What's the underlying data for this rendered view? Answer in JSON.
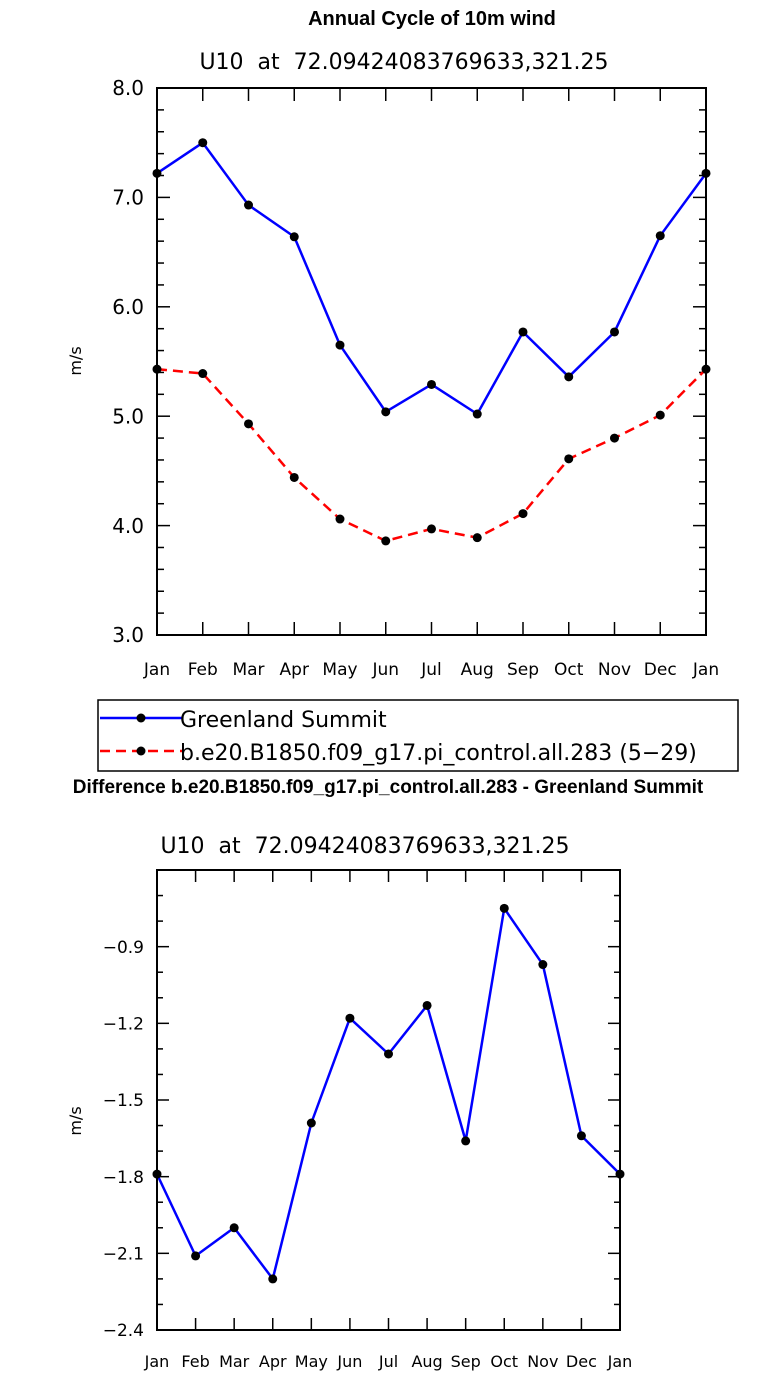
{
  "chart_data": [
    {
      "type": "line",
      "title": "Annual Cycle of 10m wind",
      "subtitle": "U10  at  72.09424083769633,321.25",
      "xlabel": "",
      "ylabel": "m/s",
      "categories": [
        "Jan",
        "Feb",
        "Mar",
        "Apr",
        "May",
        "Jun",
        "Jul",
        "Aug",
        "Sep",
        "Oct",
        "Nov",
        "Dec",
        "Jan"
      ],
      "ylim": [
        3.0,
        8.0
      ],
      "yticks": [
        "3.0",
        "4.0",
        "5.0",
        "6.0",
        "7.0",
        "8.0"
      ],
      "legend_position": "below",
      "series": [
        {
          "name": "Greenland Summit",
          "color": "#0000ff",
          "dash": "solid",
          "values": [
            7.22,
            7.5,
            6.93,
            6.64,
            5.65,
            5.04,
            5.29,
            5.02,
            5.77,
            5.36,
            5.77,
            6.65,
            7.22
          ]
        },
        {
          "name": "b.e20.B1850.f09_g17.pi_control.all.283 (5−29)",
          "color": "#ff0000",
          "dash": "dashed",
          "values": [
            5.43,
            5.39,
            4.93,
            4.44,
            4.06,
            3.86,
            3.97,
            3.89,
            4.11,
            4.61,
            4.8,
            5.01,
            5.43
          ]
        }
      ]
    },
    {
      "type": "line",
      "title": "Difference b.e20.B1850.f09_g17.pi_control.all.283 - Greenland Summit",
      "subtitle": "U10  at  72.09424083769633,321.25",
      "xlabel": "",
      "ylabel": "m/s",
      "categories": [
        "Jan",
        "Feb",
        "Mar",
        "Apr",
        "May",
        "Jun",
        "Jul",
        "Aug",
        "Sep",
        "Oct",
        "Nov",
        "Dec",
        "Jan"
      ],
      "ylim": [
        -2.4,
        -0.6
      ],
      "yticks": [
        "−2.4",
        "−2.1",
        "−1.8",
        "−1.5",
        "−1.2",
        "−0.9"
      ],
      "series": [
        {
          "color": "#0000ff",
          "dash": "solid",
          "values": [
            -1.79,
            -2.11,
            -2.0,
            -2.2,
            -1.59,
            -1.18,
            -1.32,
            -1.13,
            -1.66,
            -0.75,
            -0.97,
            -1.64,
            -1.79
          ]
        }
      ]
    }
  ]
}
